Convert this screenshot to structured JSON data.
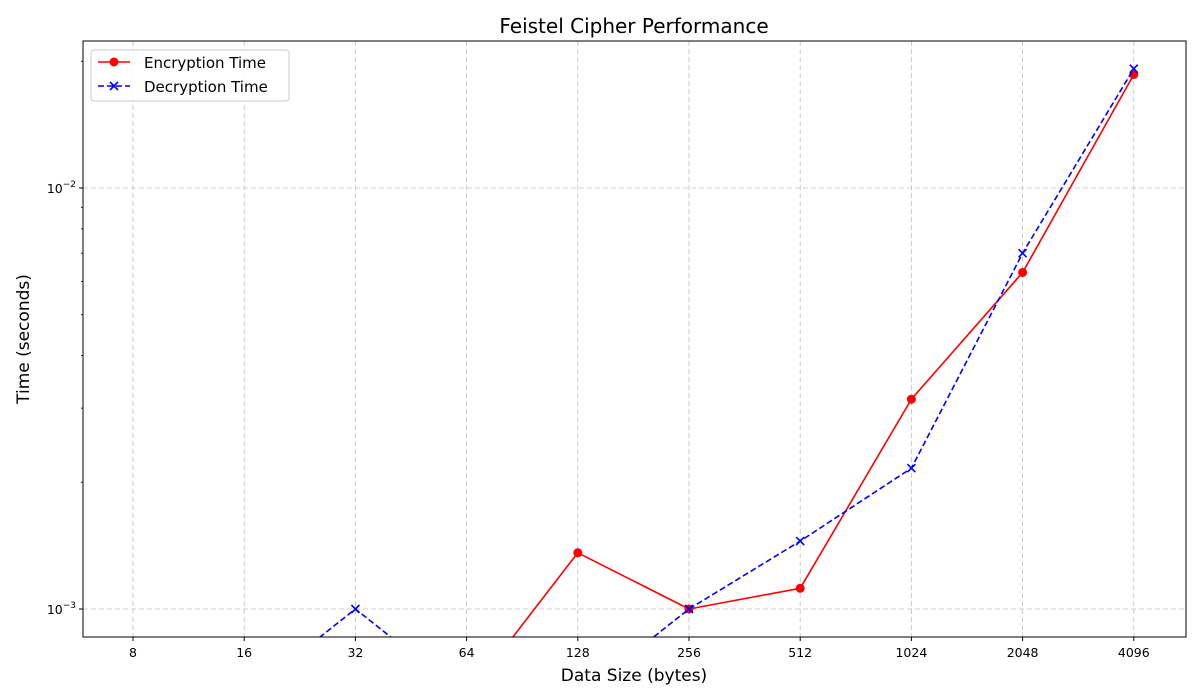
{
  "chart_data": {
    "type": "line",
    "title": "Feistel Cipher Performance",
    "xlabel": "Data Size (bytes)",
    "ylabel": "Time (seconds)",
    "x_scale": "log2",
    "y_scale": "log10",
    "categories": [
      "8",
      "16",
      "32",
      "64",
      "128",
      "256",
      "512",
      "1024",
      "2048",
      "4096"
    ],
    "x": [
      8,
      16,
      32,
      64,
      128,
      256,
      512,
      1024,
      2048,
      4096
    ],
    "y_ticks": [
      {
        "value": 0.01,
        "base": "10",
        "exp": "−2"
      },
      {
        "value": 0.001,
        "base": "10",
        "exp": "−3"
      }
    ],
    "ylim": [
      0.00088,
      0.0205
    ],
    "grid": true,
    "legend_position": "upper-left",
    "series": [
      {
        "name": "Encryption Time",
        "color": "#ff0000",
        "line_style": "solid",
        "marker": "circle",
        "values": [
          0,
          0,
          0,
          0,
          0.00136,
          0.001,
          0.00112,
          0.00315,
          0.0063,
          0.0186
        ]
      },
      {
        "name": "Decryption Time",
        "color": "#0000ff",
        "line_style": "dashed",
        "marker": "x",
        "values": [
          0,
          0,
          0.001,
          0,
          0,
          0.001,
          0.00145,
          0.00216,
          0.007,
          0.0192
        ]
      }
    ]
  }
}
